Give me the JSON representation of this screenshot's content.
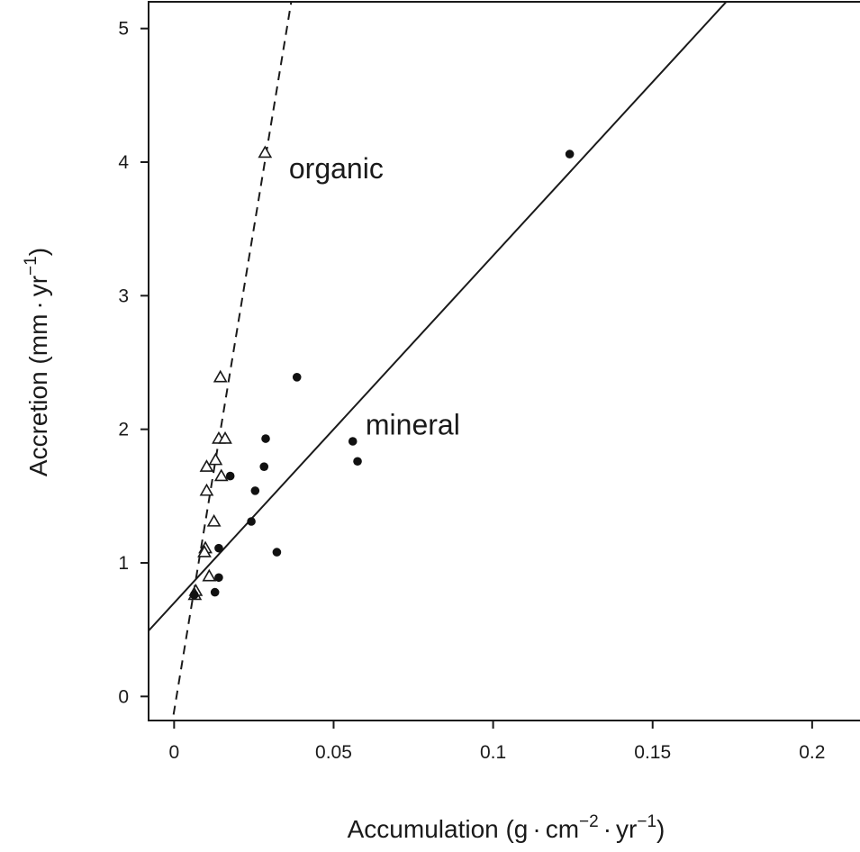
{
  "chart_data": {
    "type": "scatter",
    "xlabel": {
      "main": "Accumulation (g",
      "dot1": "·",
      "cm": "cm",
      "sup1": "−2",
      "dot2": "·",
      "yr": "yr",
      "sup2": "−1",
      "close": ")"
    },
    "ylabel": {
      "main": "Accretion (mm",
      "dot": "·",
      "yr": "yr",
      "sup": "−1",
      "close": ")"
    },
    "xlim": [
      -0.008,
      0.215
    ],
    "ylim": [
      -0.18,
      5.2
    ],
    "xticks": [
      {
        "value": 0,
        "label": "0"
      },
      {
        "value": 0.05,
        "label": "0.05"
      },
      {
        "value": 0.1,
        "label": "0.1"
      },
      {
        "value": 0.15,
        "label": "0.15"
      },
      {
        "value": 0.2,
        "label": "0.2"
      }
    ],
    "yticks": [
      {
        "value": 0,
        "label": "0"
      },
      {
        "value": 1,
        "label": "1"
      },
      {
        "value": 2,
        "label": "2"
      },
      {
        "value": 3,
        "label": "3"
      },
      {
        "value": 4,
        "label": "4"
      },
      {
        "value": 5,
        "label": "5"
      }
    ],
    "grid": false,
    "series": [
      {
        "marker": "open-triangle",
        "color": "#1a1a1a",
        "points": [
          [
            0.0285,
            4.07
          ],
          [
            0.0145,
            2.39
          ],
          [
            0.014,
            1.93
          ],
          [
            0.016,
            1.93
          ],
          [
            0.013,
            1.77
          ],
          [
            0.0102,
            1.72
          ],
          [
            0.0148,
            1.65
          ],
          [
            0.0102,
            1.54
          ],
          [
            0.0125,
            1.31
          ],
          [
            0.0098,
            1.11
          ],
          [
            0.0095,
            1.08
          ],
          [
            0.011,
            0.9
          ],
          [
            0.0068,
            0.79
          ],
          [
            0.0065,
            0.76
          ]
        ]
      },
      {
        "marker": "filled-circle",
        "color": "#111111",
        "points": [
          [
            0.124,
            4.06
          ],
          [
            0.0385,
            2.39
          ],
          [
            0.0287,
            1.93
          ],
          [
            0.056,
            1.91
          ],
          [
            0.0575,
            1.76
          ],
          [
            0.0282,
            1.72
          ],
          [
            0.0176,
            1.65
          ],
          [
            0.0254,
            1.54
          ],
          [
            0.0242,
            1.31
          ],
          [
            0.014,
            1.11
          ],
          [
            0.0322,
            1.08
          ],
          [
            0.014,
            0.89
          ],
          [
            0.0128,
            0.78
          ],
          [
            0.0063,
            0.76
          ]
        ]
      }
    ],
    "fit_lines": [
      {
        "style": "dashed",
        "color": "#1a1a1a",
        "intercept": -0.11,
        "slope": 144.6
      },
      {
        "style": "solid",
        "color": "#1a1a1a",
        "intercept": 0.7,
        "slope": 26.0
      }
    ],
    "annotations": [
      {
        "text": "organic",
        "x": 0.036,
        "y": 3.88
      },
      {
        "text": "mineral",
        "x": 0.06,
        "y": 1.96
      }
    ]
  }
}
